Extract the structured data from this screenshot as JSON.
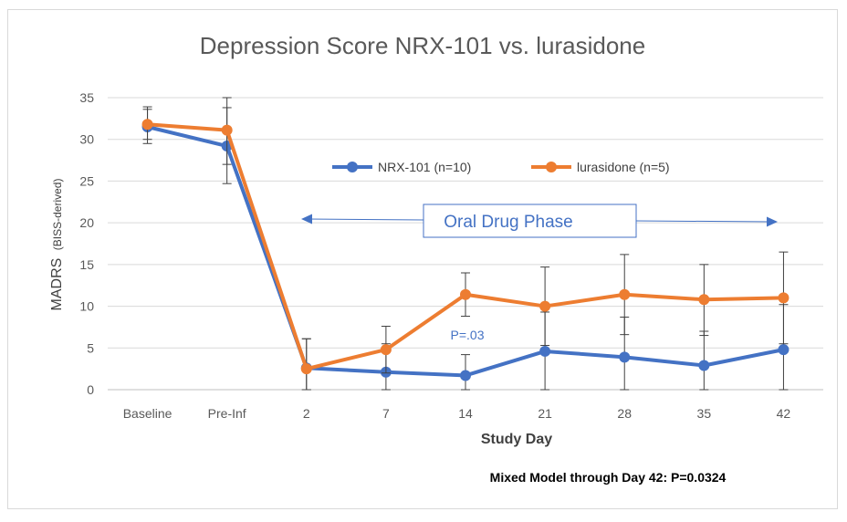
{
  "chart_data": {
    "type": "line",
    "title": "Depression Score NRX-101 vs. lurasidone",
    "xlabel": "Study Day",
    "ylabel_main": "MADRS",
    "ylabel_sub": "(BISS-derived)",
    "categories": [
      "Baseline",
      "Pre-Inf",
      "2",
      "7",
      "14",
      "21",
      "28",
      "35",
      "42"
    ],
    "yticks": [
      "0",
      "5",
      "10",
      "15",
      "20",
      "25",
      "30",
      "35"
    ],
    "ylim": [
      0,
      35
    ],
    "grid": true,
    "legend_position": "top-center",
    "series": [
      {
        "name": "NRX-101 (n=10)",
        "color": "#4472C4",
        "values": [
          31.5,
          29.2,
          2.6,
          2.1,
          1.7,
          4.6,
          3.9,
          2.9,
          4.8
        ],
        "err_low": [
          29.5,
          24.7,
          0,
          0,
          0,
          0,
          0,
          0,
          0
        ],
        "err_high": [
          33.6,
          33.8,
          6.1,
          5.5,
          4.2,
          9.3,
          8.7,
          7.0,
          10.2
        ]
      },
      {
        "name": "lurasidone (n=5)",
        "color": "#ED7D31",
        "values": [
          31.8,
          31.1,
          2.5,
          4.8,
          11.4,
          10.0,
          11.4,
          10.8,
          11.0
        ],
        "err_low": [
          30.0,
          27.0,
          0,
          2.0,
          8.8,
          5.3,
          6.6,
          6.5,
          5.5
        ],
        "err_high": [
          33.9,
          35.0,
          6.1,
          7.6,
          14.0,
          14.7,
          16.2,
          15.0,
          16.5
        ]
      }
    ],
    "annotations": {
      "phase_label": "Oral Drug Phase",
      "pvalue_label": "P=.03",
      "footnote": "Mixed Model through Day 42: P=0.0324"
    }
  }
}
